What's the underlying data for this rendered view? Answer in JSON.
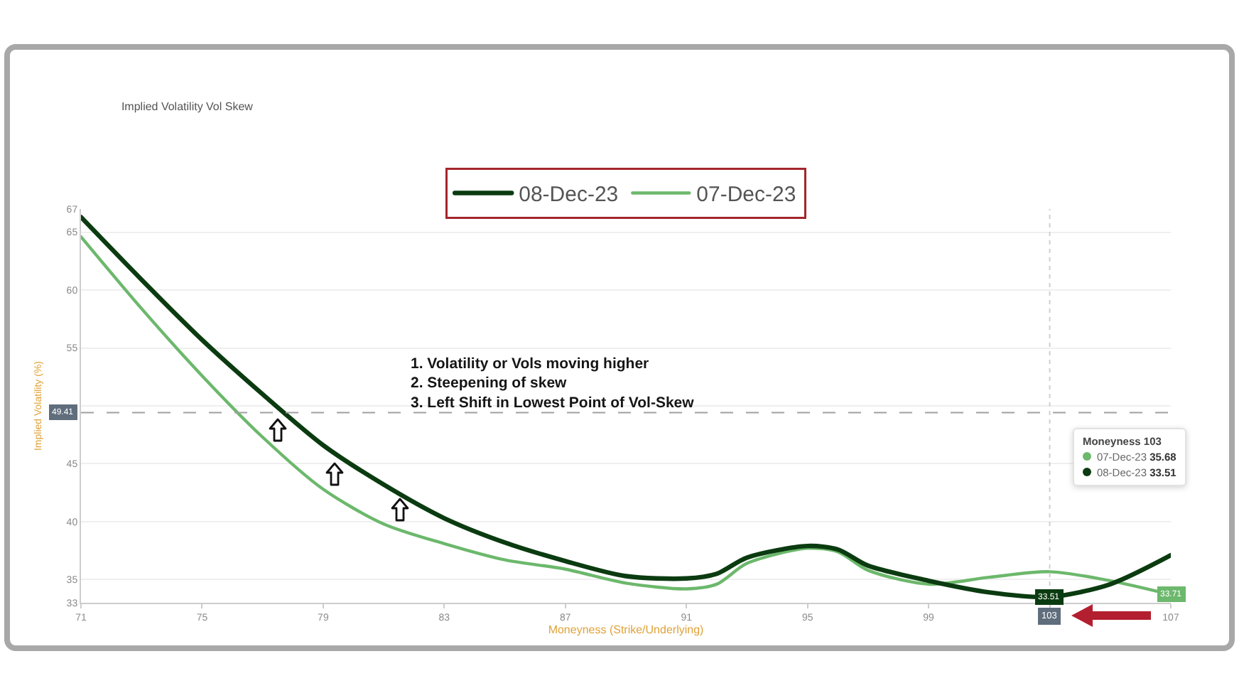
{
  "chart_data": {
    "type": "line",
    "title": "Implied Volatility Vol Skew",
    "xlabel": "Moneyness (Strike/Underlying)",
    "ylabel": "Implied Volatility (%)",
    "x": [
      71,
      73,
      75,
      77,
      79,
      81,
      83,
      85,
      87,
      89,
      91,
      92,
      93,
      95,
      96,
      97,
      99,
      101,
      103,
      105,
      107
    ],
    "series": [
      {
        "name": "07-Dec-23",
        "color": "#6cb86c",
        "values": [
          64.6,
          58.4,
          52.6,
          47.3,
          42.8,
          39.8,
          38.1,
          36.7,
          35.9,
          34.7,
          34.2,
          34.6,
          36.4,
          37.7,
          37.4,
          35.8,
          34.6,
          35.2,
          35.68,
          34.9,
          33.71
        ]
      },
      {
        "name": "08-Dec-23",
        "color": "#0b3b10",
        "values": [
          66.3,
          60.9,
          55.7,
          51.0,
          46.6,
          43.2,
          40.3,
          38.2,
          36.6,
          35.3,
          35.1,
          35.5,
          36.9,
          37.9,
          37.6,
          36.2,
          34.9,
          33.9,
          33.51,
          34.6,
          37.1
        ]
      }
    ],
    "xlim": [
      71,
      107
    ],
    "xticks": [
      71,
      75,
      79,
      83,
      87,
      91,
      95,
      99,
      {
        "value": 103,
        "label": null
      },
      107
    ],
    "ylim": [
      33,
      67
    ],
    "yticks": [
      33,
      35,
      40,
      45,
      {
        "value": 50,
        "label": null
      },
      55,
      60,
      65,
      67
    ],
    "grid": "y",
    "legend": "top",
    "line_style": "solid",
    "ref_lines": [
      {
        "axis": "x",
        "value": 103,
        "label": "103",
        "color": "#cfcfcf",
        "line_style": "dotted"
      },
      {
        "axis": "y",
        "value": 49.41,
        "label": "49.41",
        "color": "#a0a0a0",
        "line_style": "dashed"
      }
    ],
    "annotations": [
      "1. Volatility or Vols moving higher\n2. Steepening of skew\n3. Left Shift in Lowest Point of Vol-Skew",
      "Moneyness 103\n07-Dec-23 35.68\n08-Dec-23 33.51",
      {
        "text": "33.51",
        "x": 103,
        "y": 33.51
      },
      {
        "text": "33.71",
        "x": 107,
        "y": 33.71
      }
    ]
  }
}
